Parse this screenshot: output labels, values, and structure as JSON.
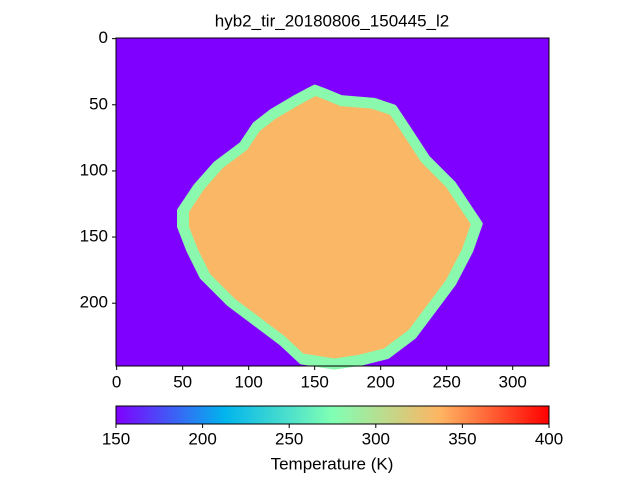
{
  "chart_data": {
    "type": "image",
    "title": "hyb2_tir_20180806_150445_l2",
    "xlim": [
      -0.5,
      327.5
    ],
    "ylim": [
      247.5,
      -0.5
    ],
    "xticks": [
      0,
      50,
      100,
      150,
      200,
      250,
      300
    ],
    "yticks": [
      0,
      50,
      100,
      150,
      200
    ],
    "background_value": 150,
    "body_value": 335,
    "rim_value": 280,
    "body_outline_x": [
      48,
      60,
      75,
      95,
      105,
      118,
      135,
      150,
      158,
      170,
      195,
      210,
      222,
      235,
      255,
      275,
      268,
      255,
      240,
      225,
      205,
      185,
      165,
      140,
      125,
      105,
      85,
      65,
      55,
      48
    ],
    "body_outline_y": [
      130,
      112,
      95,
      80,
      65,
      55,
      45,
      37,
      40,
      45,
      47,
      52,
      70,
      90,
      110,
      140,
      160,
      185,
      205,
      225,
      240,
      245,
      248,
      244,
      230,
      215,
      200,
      180,
      160,
      142
    ],
    "colormap": "rainbow",
    "colorbar": {
      "label": "Temperature (K)",
      "lim": [
        150,
        400
      ],
      "ticks": [
        150,
        200,
        250,
        300,
        350,
        400
      ]
    }
  }
}
